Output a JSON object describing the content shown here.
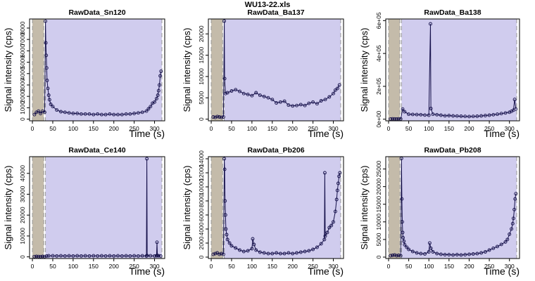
{
  "figure_title": "WU13-22.xls",
  "colors": {
    "background_window": "#c4bbaa",
    "signal_window": "#d0ccee",
    "points": "#15104a",
    "window_edge": "#999999"
  },
  "chart_data": [
    {
      "type": "scatter",
      "title": "RawData_Sn120",
      "xlabel": "Time (s)",
      "ylabel": "Signal intensity (cps)",
      "xlim": [
        -7,
        325
      ],
      "ylim": [
        -150,
        8800
      ],
      "xticks": [
        0,
        50,
        100,
        150,
        200,
        250,
        300
      ],
      "yticks": [
        0,
        1000,
        2000,
        3000,
        4000,
        5000,
        6000,
        7000,
        8000
      ],
      "ytick_rotated": true,
      "background_window": [
        0,
        28
      ],
      "signal_window": [
        32,
        318
      ],
      "series": [
        {
          "x": [
            5,
            10,
            15,
            20,
            25,
            30,
            32,
            33,
            34,
            35,
            36,
            38,
            40,
            42,
            45,
            50,
            60,
            70,
            80,
            90,
            100,
            110,
            120,
            130,
            140,
            150,
            160,
            170,
            180,
            190,
            200,
            210,
            220,
            230,
            240,
            250,
            260,
            270,
            280,
            285,
            290,
            295,
            300,
            305,
            308,
            310,
            312,
            314,
            316
          ],
          "y": [
            400,
            600,
            700,
            500,
            700,
            600,
            8600,
            6700,
            5600,
            4500,
            3400,
            2700,
            2100,
            1700,
            1300,
            1100,
            800,
            650,
            600,
            550,
            500,
            500,
            450,
            450,
            450,
            400,
            450,
            400,
            400,
            450,
            400,
            400,
            400,
            450,
            450,
            500,
            550,
            600,
            700,
            900,
            1100,
            1400,
            1500,
            1800,
            2100,
            2500,
            3000,
            3800,
            4200
          ]
        }
      ]
    },
    {
      "type": "scatter",
      "title": "RawData_Ba137",
      "xlabel": "Time (s)",
      "ylabel": "Signal intensity (cps)",
      "xlim": [
        -7,
        325
      ],
      "ylim": [
        -400,
        23500
      ],
      "xticks": [
        0,
        50,
        100,
        150,
        200,
        250,
        300
      ],
      "yticks": [
        0,
        5000,
        10000,
        15000,
        20000
      ],
      "ytick_rotated": true,
      "background_window": [
        0,
        28
      ],
      "signal_window": [
        32,
        318
      ],
      "series": [
        {
          "x": [
            5,
            10,
            15,
            20,
            25,
            30,
            32,
            33,
            35,
            40,
            50,
            60,
            70,
            80,
            90,
            100,
            110,
            120,
            130,
            140,
            150,
            160,
            170,
            180,
            190,
            200,
            210,
            220,
            230,
            240,
            250,
            260,
            270,
            280,
            290,
            300,
            305,
            310,
            315
          ],
          "y": [
            500,
            400,
            600,
            500,
            400,
            500,
            23000,
            9500,
            6000,
            6200,
            6600,
            6900,
            6500,
            6000,
            5800,
            5500,
            6200,
            5600,
            5300,
            5000,
            4600,
            3800,
            4000,
            4200,
            3300,
            3100,
            3200,
            3400,
            3200,
            3700,
            4000,
            3600,
            4300,
            4600,
            5200,
            6000,
            6800,
            7200,
            8000
          ]
        }
      ]
    },
    {
      "type": "scatter",
      "title": "RawData_Ba138",
      "xlabel": "Time (s)",
      "ylabel": "Signal intensity (cps)",
      "xlim": [
        -7,
        325
      ],
      "ylim": [
        -10000,
        610000
      ],
      "xticks": [
        0,
        50,
        100,
        150,
        200,
        250,
        300
      ],
      "yticks": [
        0,
        200000,
        400000,
        600000
      ],
      "ytick_labels": [
        "0e+00",
        "2e+05",
        "4e+05",
        "6e+05"
      ],
      "ytick_rotated": true,
      "background_window": [
        0,
        28
      ],
      "signal_window": [
        32,
        318
      ],
      "series": [
        {
          "x": [
            5,
            10,
            15,
            20,
            25,
            30,
            35,
            40,
            50,
            60,
            70,
            80,
            90,
            100,
            104,
            105,
            110,
            120,
            130,
            140,
            150,
            160,
            170,
            180,
            190,
            200,
            210,
            220,
            230,
            240,
            250,
            260,
            270,
            280,
            290,
            300,
            305,
            310,
            313,
            316
          ],
          "y": [
            1000,
            2000,
            1500,
            1000,
            2000,
            1500,
            62000,
            45000,
            30000,
            29000,
            28000,
            27000,
            25000,
            24000,
            580000,
            65000,
            30000,
            27000,
            24000,
            21000,
            22000,
            20000,
            19000,
            18000,
            17000,
            16000,
            17000,
            18000,
            20000,
            22000,
            24000,
            27000,
            30000,
            34000,
            38000,
            42000,
            48000,
            55000,
            120000,
            62000
          ]
        }
      ]
    },
    {
      "type": "scatter",
      "title": "RawData_Ce140",
      "xlabel": "Time (s)",
      "ylabel": "Signal intensity (cps)",
      "xlim": [
        -7,
        325
      ],
      "ylim": [
        -800,
        48000
      ],
      "xticks": [
        0,
        50,
        100,
        150,
        200,
        250,
        300
      ],
      "yticks": [
        0,
        10000,
        20000,
        30000,
        40000
      ],
      "ytick_rotated": true,
      "background_window": [
        0,
        28
      ],
      "signal_window": [
        32,
        318
      ],
      "series": [
        {
          "x": [
            5,
            10,
            15,
            20,
            25,
            30,
            35,
            40,
            50,
            60,
            70,
            80,
            90,
            100,
            110,
            120,
            130,
            140,
            150,
            160,
            170,
            180,
            190,
            200,
            210,
            220,
            230,
            240,
            250,
            260,
            270,
            280,
            281,
            282,
            290,
            300,
            305,
            306,
            307,
            310,
            315
          ],
          "y": [
            100,
            200,
            150,
            100,
            200,
            150,
            400,
            500,
            500,
            400,
            500,
            400,
            500,
            400,
            500,
            400,
            500,
            400,
            500,
            400,
            500,
            400,
            500,
            400,
            500,
            400,
            500,
            400,
            500,
            400,
            500,
            400,
            47000,
            600,
            500,
            400,
            500,
            7000,
            600,
            500,
            400
          ]
        }
      ]
    },
    {
      "type": "scatter",
      "title": "RawData_Pb206",
      "xlabel": "Time (s)",
      "ylabel": "Signal intensity (cps)",
      "xlim": [
        -7,
        325
      ],
      "ylim": [
        -200,
        14300
      ],
      "xticks": [
        0,
        50,
        100,
        150,
        200,
        250,
        300
      ],
      "yticks": [
        0,
        2000,
        4000,
        6000,
        8000,
        10000,
        12000,
        14000
      ],
      "ytick_rotated": true,
      "background_window": [
        0,
        28
      ],
      "signal_window": [
        32,
        318
      ],
      "series": [
        {
          "x": [
            5,
            10,
            15,
            20,
            25,
            30,
            32,
            33,
            34,
            35,
            36,
            38,
            40,
            45,
            50,
            60,
            70,
            80,
            90,
            100,
            102,
            105,
            110,
            120,
            130,
            140,
            150,
            160,
            170,
            180,
            190,
            200,
            210,
            220,
            230,
            240,
            250,
            260,
            270,
            278,
            279,
            280,
            285,
            290,
            295,
            300,
            305,
            308,
            310,
            312,
            314,
            316
          ],
          "y": [
            400,
            500,
            600,
            400,
            500,
            400,
            14000,
            12500,
            8000,
            6000,
            4000,
            3200,
            2500,
            2000,
            1600,
            1300,
            1000,
            800,
            900,
            1200,
            2600,
            1800,
            1000,
            700,
            600,
            500,
            500,
            600,
            500,
            500,
            600,
            500,
            600,
            700,
            800,
            900,
            1100,
            1400,
            1900,
            2500,
            12000,
            3000,
            3500,
            4200,
            4500,
            5000,
            6500,
            8200,
            9500,
            10500,
            11500,
            12000
          ]
        }
      ]
    },
    {
      "type": "scatter",
      "title": "RawData_Pb208",
      "xlabel": "Time (s)",
      "ylabel": "Signal intensity (cps)",
      "xlim": [
        -7,
        325
      ],
      "ylim": [
        -400,
        28500
      ],
      "xticks": [
        0,
        50,
        100,
        150,
        200,
        250,
        300
      ],
      "yticks": [
        0,
        5000,
        10000,
        15000,
        20000,
        25000
      ],
      "ytick_rotated": true,
      "background_window": [
        0,
        28
      ],
      "signal_window": [
        32,
        318
      ],
      "series": [
        {
          "x": [
            5,
            10,
            15,
            20,
            25,
            30,
            32,
            33,
            34,
            35,
            36,
            38,
            40,
            45,
            50,
            60,
            70,
            80,
            90,
            100,
            102,
            105,
            110,
            120,
            130,
            140,
            150,
            160,
            170,
            180,
            190,
            200,
            210,
            220,
            230,
            240,
            250,
            260,
            270,
            280,
            290,
            295,
            300,
            305,
            308,
            310,
            312,
            314,
            316
          ],
          "y": [
            400,
            500,
            600,
            400,
            500,
            400,
            28000,
            16500,
            10000,
            7000,
            5500,
            4500,
            3500,
            2800,
            2200,
            1600,
            1200,
            1000,
            900,
            1500,
            4000,
            2500,
            1500,
            1000,
            800,
            700,
            700,
            600,
            700,
            600,
            700,
            800,
            900,
            1000,
            1200,
            1500,
            2000,
            2500,
            3000,
            3600,
            4300,
            5000,
            6500,
            8000,
            9500,
            11000,
            13500,
            16500,
            18000
          ]
        }
      ]
    }
  ]
}
